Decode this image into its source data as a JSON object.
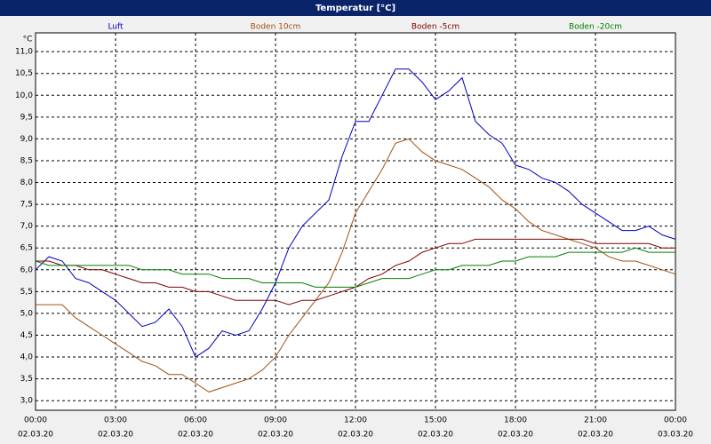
{
  "chart_data": {
    "type": "line",
    "title": "Temperatur [°C]",
    "y_label": "°C",
    "x": [
      0,
      0.5,
      1,
      1.5,
      2,
      2.5,
      3,
      3.5,
      4,
      4.5,
      5,
      5.5,
      6,
      6.5,
      7,
      7.5,
      8,
      8.5,
      9,
      9.5,
      10,
      10.5,
      11,
      11.5,
      12,
      12.5,
      13,
      13.5,
      14,
      14.5,
      15,
      15.5,
      16,
      16.5,
      17,
      17.5,
      18,
      18.5,
      19,
      19.5,
      20,
      20.5,
      21,
      21.5,
      22,
      22.5,
      23,
      23.5,
      24
    ],
    "series": [
      {
        "name": "Luft",
        "color": "#0000c0",
        "values": [
          6.0,
          6.3,
          6.2,
          5.8,
          5.7,
          5.5,
          5.3,
          5.0,
          4.7,
          4.8,
          5.1,
          4.7,
          4.0,
          4.2,
          4.6,
          4.5,
          4.6,
          5.1,
          5.7,
          6.5,
          7.0,
          7.3,
          7.6,
          8.6,
          9.4,
          9.4,
          10.0,
          10.6,
          10.6,
          10.3,
          9.9,
          10.1,
          10.4,
          9.4,
          9.1,
          8.9,
          8.4,
          8.3,
          8.1,
          8.0,
          7.8,
          7.5,
          7.3,
          7.1,
          6.9,
          6.9,
          7.0,
          6.8,
          6.7
        ]
      },
      {
        "name": "Boden 10cm",
        "color": "#a05010",
        "values": [
          5.2,
          5.2,
          5.2,
          4.9,
          4.7,
          4.5,
          4.3,
          4.1,
          3.9,
          3.8,
          3.6,
          3.6,
          3.4,
          3.2,
          3.3,
          3.4,
          3.5,
          3.7,
          4.0,
          4.5,
          4.9,
          5.3,
          5.7,
          6.4,
          7.3,
          7.8,
          8.3,
          8.9,
          9.0,
          8.7,
          8.5,
          8.4,
          8.3,
          8.1,
          7.9,
          7.6,
          7.4,
          7.1,
          6.9,
          6.8,
          6.7,
          6.6,
          6.5,
          6.3,
          6.2,
          6.2,
          6.1,
          6.0,
          5.9
        ]
      },
      {
        "name": "Boden -5cm",
        "color": "#800000",
        "values": [
          6.2,
          6.2,
          6.1,
          6.1,
          6.0,
          6.0,
          5.9,
          5.8,
          5.7,
          5.7,
          5.6,
          5.6,
          5.5,
          5.5,
          5.4,
          5.3,
          5.3,
          5.3,
          5.3,
          5.2,
          5.3,
          5.3,
          5.4,
          5.5,
          5.6,
          5.8,
          5.9,
          6.1,
          6.2,
          6.4,
          6.5,
          6.6,
          6.6,
          6.7,
          6.7,
          6.7,
          6.7,
          6.7,
          6.7,
          6.7,
          6.7,
          6.7,
          6.6,
          6.6,
          6.6,
          6.6,
          6.6,
          6.5,
          6.5
        ]
      },
      {
        "name": "Boden -20cm",
        "color": "#008000",
        "values": [
          6.2,
          6.1,
          6.1,
          6.1,
          6.1,
          6.1,
          6.1,
          6.1,
          6.0,
          6.0,
          6.0,
          5.9,
          5.9,
          5.9,
          5.8,
          5.8,
          5.8,
          5.7,
          5.7,
          5.7,
          5.7,
          5.6,
          5.6,
          5.6,
          5.6,
          5.7,
          5.8,
          5.8,
          5.8,
          5.9,
          6.0,
          6.0,
          6.1,
          6.1,
          6.1,
          6.2,
          6.2,
          6.3,
          6.3,
          6.3,
          6.4,
          6.4,
          6.4,
          6.4,
          6.4,
          6.5,
          6.4,
          6.4,
          6.4
        ]
      }
    ],
    "xlim": [
      0,
      24
    ],
    "xticks": [
      {
        "value": 0,
        "label": "00:00"
      },
      {
        "value": 3,
        "label": "03:00"
      },
      {
        "value": 6,
        "label": "06:00"
      },
      {
        "value": 9,
        "label": "09:00"
      },
      {
        "value": 12,
        "label": "12:00"
      },
      {
        "value": 15,
        "label": "15:00"
      },
      {
        "value": 18,
        "label": "18:00"
      },
      {
        "value": 21,
        "label": "21:00"
      },
      {
        "value": 24,
        "label": "00:00"
      }
    ],
    "xtick_dates": [
      "02.03.20",
      "02.03.20",
      "02.03.20",
      "02.03.20",
      "02.03.20",
      "02.03.20",
      "02.03.20",
      "02.03.20",
      "03.03.20"
    ],
    "ylim": [
      2.78,
      11.43
    ],
    "yticks": [
      {
        "value": 3,
        "label": "3,0"
      },
      {
        "value": 3.5,
        "label": "3,5"
      },
      {
        "value": 4,
        "label": "4,0"
      },
      {
        "value": 4.5,
        "label": "4,5"
      },
      {
        "value": 5,
        "label": "5,0"
      },
      {
        "value": 5.5,
        "label": "5,5"
      },
      {
        "value": 6,
        "label": "6,0"
      },
      {
        "value": 6.5,
        "label": "6,5"
      },
      {
        "value": 7,
        "label": "7,0"
      },
      {
        "value": 7.5,
        "label": "7,5"
      },
      {
        "value": 8,
        "label": "8,0"
      },
      {
        "value": 8.5,
        "label": "8,5"
      },
      {
        "value": 9,
        "label": "9,0"
      },
      {
        "value": 9.5,
        "label": "9,5"
      },
      {
        "value": 10,
        "label": "10,0"
      },
      {
        "value": 10.5,
        "label": "10,5"
      },
      {
        "value": 11,
        "label": "11,0"
      }
    ],
    "grid": true
  }
}
